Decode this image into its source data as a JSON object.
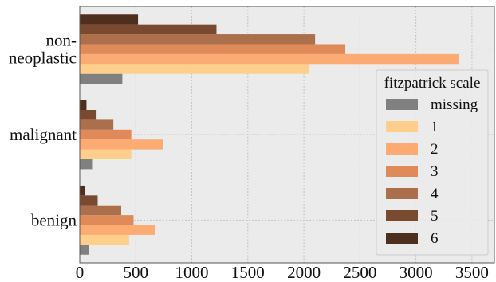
{
  "chart_data": {
    "type": "bar",
    "orientation": "horizontal",
    "categories": [
      "benign",
      "malignant",
      "non-neoplastic"
    ],
    "category_display": [
      [
        "benign"
      ],
      [
        "malignant"
      ],
      [
        "non-",
        "neoplastic"
      ]
    ],
    "series": [
      {
        "name": "missing",
        "color": "#808080",
        "values": [
          80,
          110,
          380
        ]
      },
      {
        "name": "1",
        "color": "#FECF8A",
        "values": [
          440,
          460,
          2050
        ]
      },
      {
        "name": "2",
        "color": "#FCAB73",
        "values": [
          670,
          740,
          3380
        ]
      },
      {
        "name": "3",
        "color": "#E08A5A",
        "values": [
          480,
          460,
          2370
        ]
      },
      {
        "name": "4",
        "color": "#AC6F4B",
        "values": [
          370,
          300,
          2100
        ]
      },
      {
        "name": "5",
        "color": "#7A4A30",
        "values": [
          160,
          150,
          1220
        ]
      },
      {
        "name": "6",
        "color": "#4E2E1C",
        "values": [
          50,
          60,
          520
        ]
      }
    ],
    "xlim": [
      0,
      3700
    ],
    "xticks": [
      0,
      500,
      1000,
      1500,
      2000,
      2500,
      3000,
      3500
    ],
    "xlabel": "",
    "ylabel": "",
    "legend": {
      "title": "fitzpatrick scale",
      "position": "center-right"
    },
    "grid": true,
    "background": "#EBEBEB"
  }
}
